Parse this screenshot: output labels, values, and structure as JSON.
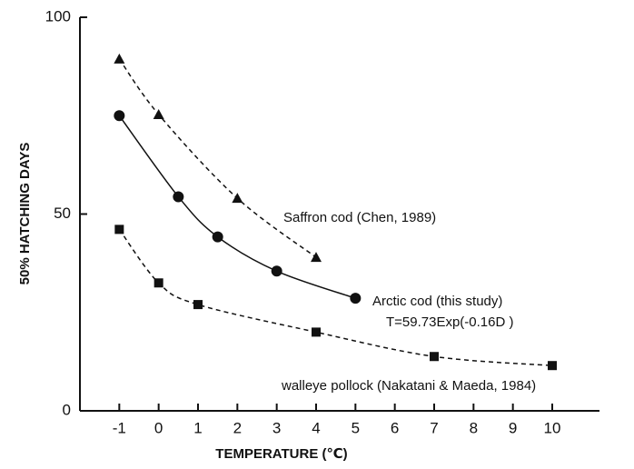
{
  "chart_data": {
    "type": "line",
    "xlabel": "TEMPERATURE (℃)",
    "ylabel": "50% HATCHING DAYS",
    "xlim": [
      -2,
      11.2
    ],
    "ylim": [
      0,
      100
    ],
    "xticks": [
      -1,
      0,
      1,
      2,
      3,
      4,
      5,
      6,
      7,
      8,
      9,
      10
    ],
    "yticks": [
      0,
      50,
      100
    ],
    "annotations": [
      "T=59.73Exp(-0.16D )"
    ],
    "series": [
      {
        "name": "Saffron cod (Chen, 1989)",
        "color": "#111111",
        "marker": "triangle",
        "dashed": true,
        "x": [
          -1,
          0,
          2,
          4
        ],
        "values": [
          89.4,
          75.3,
          54,
          39
        ]
      },
      {
        "name": "Arctic cod (this study)",
        "color": "#111111",
        "marker": "circle",
        "dashed": false,
        "x": [
          -1,
          0.5,
          1.5,
          3,
          5
        ],
        "values": [
          75,
          54.4,
          44.2,
          35.5,
          28.6
        ]
      },
      {
        "name": "walleye pollock (Nakatani & Maeda, 1984)",
        "color": "#111111",
        "marker": "square",
        "dashed": true,
        "x": [
          -1,
          0,
          1,
          4,
          7,
          10
        ],
        "values": [
          46.1,
          32.5,
          27,
          20,
          13.8,
          11.5
        ]
      }
    ]
  }
}
